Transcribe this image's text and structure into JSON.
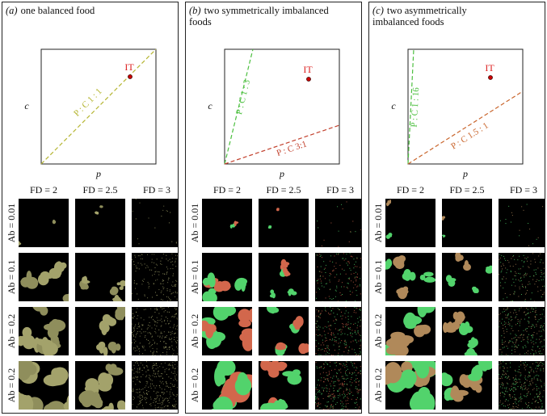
{
  "panels": [
    {
      "letter": "(a)",
      "title": "one balanced food",
      "diagram": {
        "x_label": "p",
        "y_label": "c",
        "target_label": "IT",
        "lines": [
          {
            "label": "P : C 1 : 1",
            "color": "#b5b531"
          }
        ]
      },
      "patch_colors": [
        "#a3a26b",
        "#8f8e5c"
      ],
      "columns": [
        "FD = 2",
        "FD = 2.5",
        "FD = 3"
      ],
      "rows": [
        "Ab = 0.01",
        "Ab = 0.1",
        "Ab = 0.2",
        "Ab = 0.2"
      ]
    },
    {
      "letter": "(b)",
      "title": "two symmetrically imbalanced foods",
      "diagram": {
        "x_label": "p",
        "y_label": "c",
        "target_label": "IT",
        "lines": [
          {
            "label": "P : C 1 : 3",
            "color": "#4cbf3f"
          },
          {
            "label": "P : C 3:1",
            "color": "#c2402c"
          }
        ]
      },
      "patch_colors": [
        "#52d36c",
        "#d2674c"
      ],
      "columns": [
        "FD = 2",
        "FD = 2.5",
        "FD = 3"
      ],
      "rows": [
        "Ab = 0.01",
        "Ab = 0.1",
        "Ab = 0.2",
        "Ab = 0.2"
      ]
    },
    {
      "letter": "(c)",
      "title": "two asymmetrically imbalanced foods",
      "diagram": {
        "x_label": "p",
        "y_label": "c",
        "target_label": "IT",
        "lines": [
          {
            "label": "P : C 1 : 16",
            "color": "#4cbf3f"
          },
          {
            "label": "P : C 1.5 : 1",
            "color": "#c9652c"
          }
        ]
      },
      "patch_colors": [
        "#52d36c",
        "#b0895a"
      ],
      "columns": [
        "FD = 2",
        "FD = 2.5",
        "FD = 3"
      ],
      "rows": [
        "Ab = 0.01",
        "Ab = 0.1",
        "Ab = 0.2",
        "Ab = 0.2"
      ]
    }
  ]
}
